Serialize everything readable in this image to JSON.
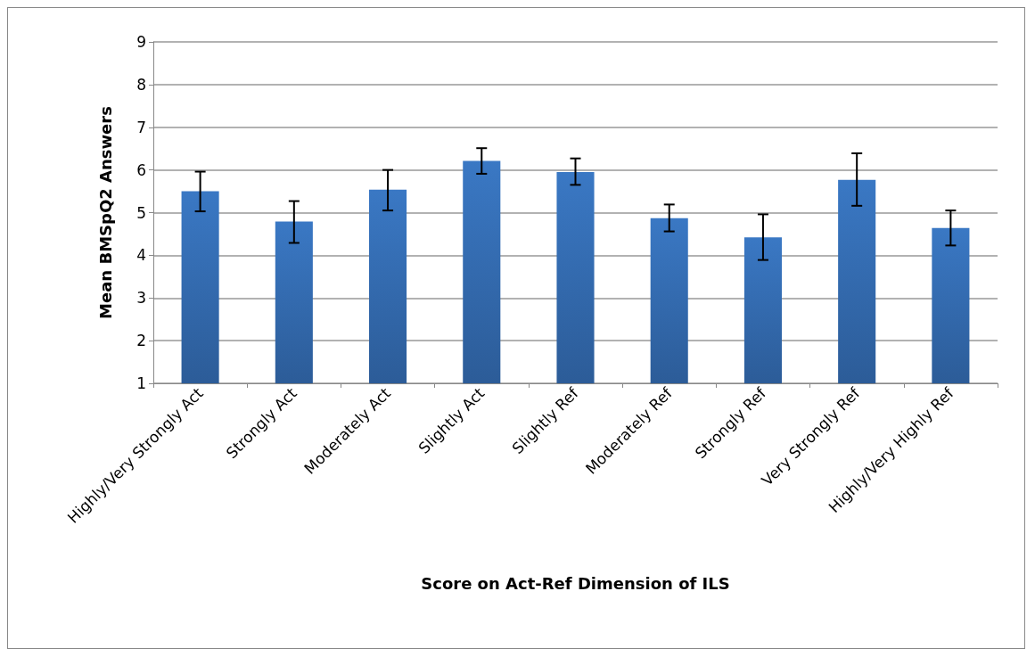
{
  "chart_data": {
    "type": "bar",
    "xlabel": "Score on Act-Ref Dimension of ILS",
    "ylabel": "Mean BMSpQ2 Answers",
    "categories": [
      "Highly/Very Strongly Act",
      "Strongly Act",
      "Moderately Act",
      "Slightly Act",
      "Slightly Ref",
      "Moderately Ref",
      "Strongly Ref",
      "Very Strongly Ref",
      "Highly/Very Highly Ref"
    ],
    "values": [
      5.5,
      4.79,
      5.54,
      6.21,
      5.95,
      4.87,
      4.42,
      5.77,
      4.64
    ],
    "errors": [
      [
        5.03,
        5.96
      ],
      [
        4.29,
        5.27
      ],
      [
        5.05,
        6.0
      ],
      [
        5.91,
        6.51
      ],
      [
        5.65,
        6.27
      ],
      [
        4.56,
        5.19
      ],
      [
        3.89,
        4.96
      ],
      [
        5.16,
        6.39
      ],
      [
        4.23,
        5.05
      ]
    ],
    "color": "#3a78c4",
    "ylim": [
      1,
      9
    ],
    "yticks": [
      1,
      2,
      3,
      4,
      5,
      6,
      7,
      8,
      9
    ],
    "grid": "y"
  }
}
